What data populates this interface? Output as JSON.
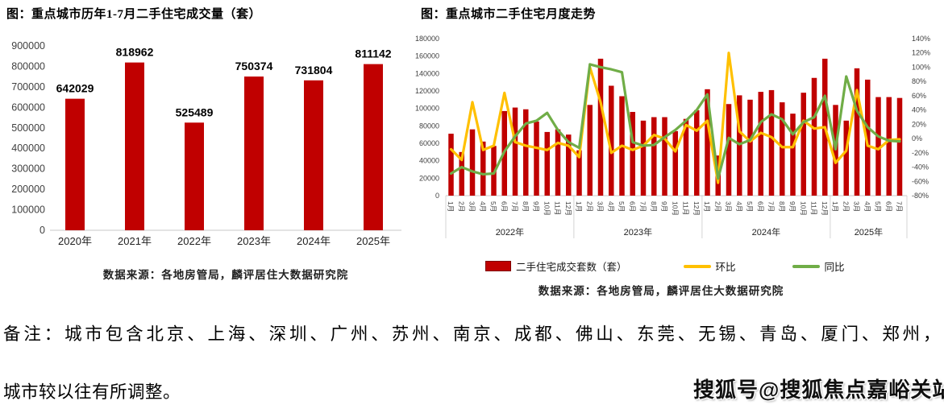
{
  "page": {
    "note_line1": "备注：城市包含北京、上海、深圳、广州、苏州、南京、成都、佛山、东莞、无锡、青岛、厦门、郑州，",
    "note_line2": "城市较以往有所调整。",
    "watermark": "搜狐号@搜狐焦点嘉峪关站"
  },
  "colors": {
    "bar": "#C00000",
    "mom_line": "#FFC000",
    "yoy_line": "#70AD47",
    "axis": "#c8c8c8",
    "tick_text": "#3f3f3f"
  },
  "chart_data": [
    {
      "type": "bar",
      "title": "图：重点城市历年1-7月二手住宅成交量（套）",
      "source": "数据来源：各地房管局，麟评居住大数据研究院",
      "categories": [
        "2020年",
        "2021年",
        "2022年",
        "2023年",
        "2024年",
        "2025年"
      ],
      "values": [
        642029,
        818962,
        525489,
        750374,
        731804,
        811142
      ],
      "ylim": [
        0,
        900000
      ],
      "ytick_step": 100000,
      "grid": false,
      "data_labels": true
    },
    {
      "type": "bar+line",
      "title": "图：重点城市二手住宅月度走势",
      "source": "数据来源：各地房管局，麟评居住大数据研究院",
      "legend_position": "bottom",
      "left_axis": {
        "min": 0,
        "max": 180000,
        "step": 20000
      },
      "right_axis": {
        "min": -80,
        "max": 140,
        "step": 20,
        "unit": "%"
      },
      "year_groups": [
        {
          "label": "2022年",
          "months": 12
        },
        {
          "label": "2023年",
          "months": 12
        },
        {
          "label": "2024年",
          "months": 12
        },
        {
          "label": "2025年",
          "months": 7
        }
      ],
      "month_labels": [
        "1月",
        "2月",
        "3月",
        "4月",
        "5月",
        "6月",
        "7月",
        "8月",
        "9月",
        "10月",
        "11月",
        "12月",
        "1月",
        "2月",
        "3月",
        "4月",
        "5月",
        "6月",
        "7月",
        "8月",
        "9月",
        "10月",
        "11月",
        "12月",
        "1月",
        "2月",
        "3月",
        "4月",
        "5月",
        "6月",
        "7月",
        "8月",
        "9月",
        "10月",
        "11月",
        "12月",
        "1月",
        "2月",
        "3月",
        "4月",
        "5月",
        "6月",
        "7月"
      ],
      "series": [
        {
          "name": "二手住宅成交套数（套）",
          "type": "bar",
          "axis": "left",
          "color": "#C00000",
          "values": [
            71000,
            50000,
            76000,
            62000,
            57000,
            97000,
            101000,
            99000,
            85000,
            73000,
            76000,
            70000,
            52000,
            104000,
            157000,
            126000,
            114000,
            96000,
            86000,
            90000,
            90000,
            74000,
            88000,
            98000,
            122000,
            46000,
            105000,
            115000,
            110000,
            119000,
            121000,
            107000,
            94000,
            118000,
            135000,
            157000,
            104000,
            86000,
            146000,
            133000,
            113000,
            113000,
            112000
          ]
        },
        {
          "name": "环比",
          "type": "line",
          "axis": "right",
          "color": "#FFC000",
          "values": [
            -15,
            -30,
            51,
            -16,
            -10,
            64,
            -5,
            -10,
            -13,
            -16,
            -6,
            -10,
            -26,
            100,
            51,
            -20,
            -10,
            -16,
            -10,
            5,
            0,
            -18,
            19,
            11,
            25,
            -62,
            120,
            10,
            -4,
            8,
            2,
            -12,
            -12,
            25,
            14,
            16,
            -34,
            -17,
            68,
            -10,
            -15,
            -2,
            -1
          ]
        },
        {
          "name": "同比",
          "type": "line",
          "axis": "right",
          "color": "#70AD47",
          "values": [
            -49,
            -40,
            -46,
            -50,
            -49,
            -18,
            3,
            21,
            25,
            36,
            12,
            -5,
            -13,
            104,
            100,
            97,
            93,
            -5,
            -10,
            -9,
            2,
            12,
            25,
            40,
            62,
            -56,
            1,
            -8,
            -2,
            23,
            34,
            27,
            6,
            23,
            30,
            60,
            -15,
            87,
            39,
            16,
            3,
            -3,
            -4
          ]
        }
      ]
    }
  ]
}
